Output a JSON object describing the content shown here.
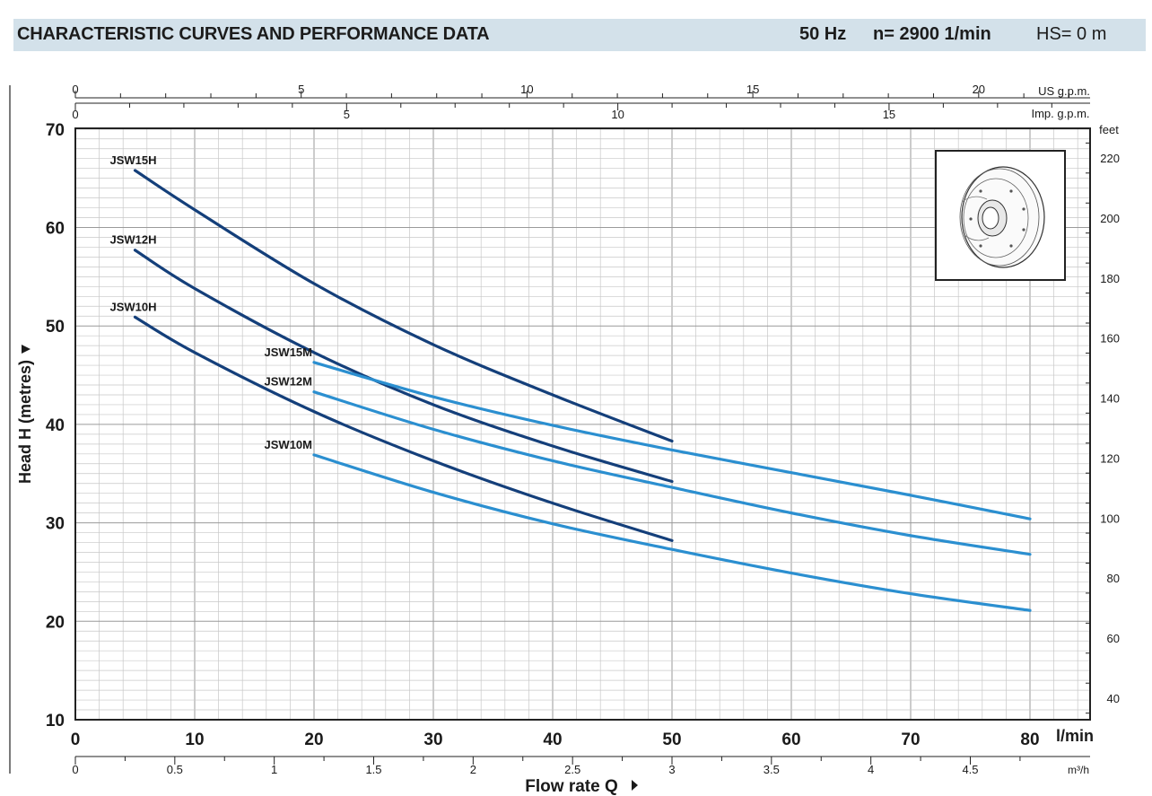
{
  "header": {
    "title": "CHARACTERISTIC CURVES AND PERFORMANCE DATA",
    "frequency": "50 Hz",
    "speed": "n= 2900  1/min",
    "hs": "HS= 0 m",
    "background": "#d3e1ea"
  },
  "chart_data": {
    "type": "line",
    "title": "CHARACTERISTIC CURVES AND PERFORMANCE DATA",
    "xlabel": "Flow rate Q",
    "ylabel": "Head H (metres)",
    "x_unit": "l/min",
    "xlim": [
      0,
      80
    ],
    "ylim": [
      10,
      70
    ],
    "grid": true,
    "x_ticks": [
      0,
      10,
      20,
      30,
      40,
      50,
      60,
      70,
      80
    ],
    "y_ticks": [
      10,
      20,
      30,
      40,
      50,
      60,
      70
    ],
    "secondary_axes": {
      "us_gpm": {
        "label": "US g.p.m.",
        "ticks": [
          0,
          5,
          10,
          15,
          20
        ]
      },
      "imp_gpm": {
        "label": "Imp. g.p.m.",
        "ticks": [
          0,
          5,
          10,
          15
        ]
      },
      "m3h": {
        "label": "m³/h",
        "ticks": [
          "0",
          "0.5",
          "1",
          "1.5",
          "2",
          "2.5",
          "3",
          "3.5",
          "4",
          "4.5"
        ]
      },
      "feet": {
        "label": "feet",
        "ticks": [
          40,
          60,
          80,
          100,
          120,
          140,
          160,
          180,
          200,
          220
        ]
      }
    },
    "series": [
      {
        "name": "JSW15H",
        "color": "#143f7a",
        "x": [
          5,
          10,
          20,
          30,
          40,
          50
        ],
        "y": [
          65.8,
          61.8,
          54.3,
          48.1,
          43.0,
          38.3
        ]
      },
      {
        "name": "JSW12H",
        "color": "#143f7a",
        "x": [
          5,
          10,
          20,
          30,
          40,
          50
        ],
        "y": [
          57.7,
          53.8,
          47.3,
          42.0,
          37.8,
          34.2
        ]
      },
      {
        "name": "JSW10H",
        "color": "#143f7a",
        "x": [
          5,
          10,
          20,
          30,
          40,
          50
        ],
        "y": [
          50.9,
          47.3,
          41.3,
          36.3,
          32.0,
          28.2
        ]
      },
      {
        "name": "JSW15M",
        "color": "#2b8fd0",
        "x": [
          20,
          30,
          40,
          50,
          60,
          70,
          80
        ],
        "y": [
          46.3,
          42.8,
          39.9,
          37.4,
          35.1,
          32.8,
          30.4
        ]
      },
      {
        "name": "JSW12M",
        "color": "#2b8fd0",
        "x": [
          20,
          30,
          40,
          50,
          60,
          70,
          80
        ],
        "y": [
          43.3,
          39.5,
          36.3,
          33.6,
          31.0,
          28.7,
          26.8
        ]
      },
      {
        "name": "JSW10M",
        "color": "#2b8fd0",
        "x": [
          20,
          30,
          40,
          50,
          60,
          70,
          80
        ],
        "y": [
          36.9,
          33.1,
          29.9,
          27.3,
          24.9,
          22.8,
          21.1
        ]
      }
    ]
  },
  "inset": {
    "description_icon": "impeller-drawing-icon"
  }
}
